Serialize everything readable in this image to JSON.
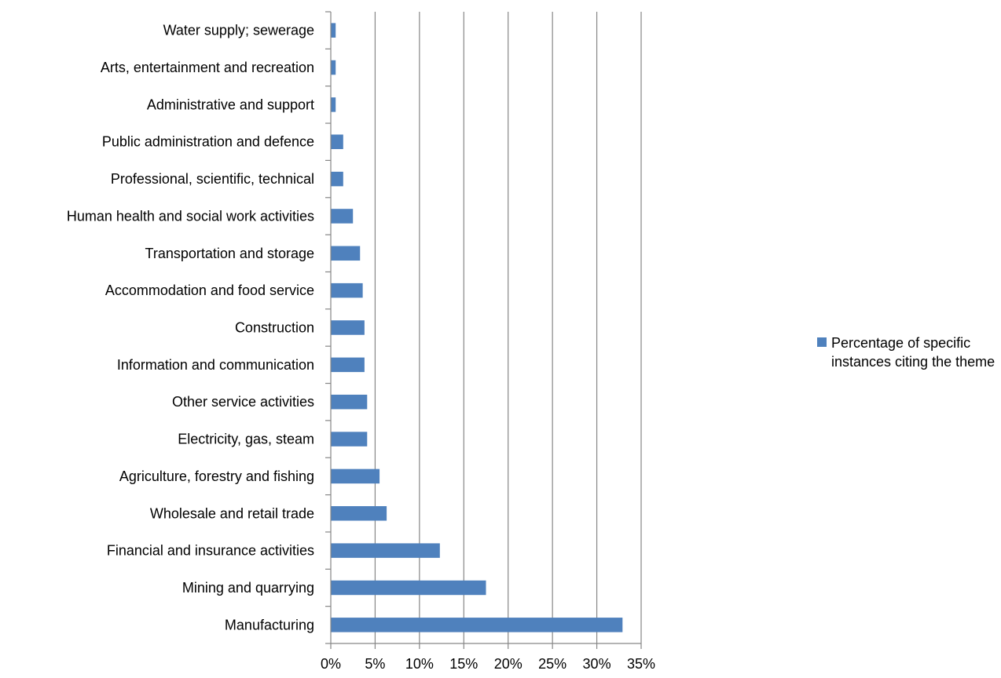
{
  "chart_data": {
    "type": "bar",
    "orientation": "horizontal",
    "categories": [
      "Manufacturing",
      "Mining and quarrying",
      "Financial and insurance activities",
      "Wholesale and retail trade",
      "Agriculture, forestry and fishing",
      "Electricity, gas, steam",
      "Other service activities",
      "Information and communication",
      "Construction",
      "Accommodation and food service",
      "Transportation and storage",
      "Human health and social work activities",
      "Professional, scientific, technical",
      "Public administration and defence",
      "Administrative and support",
      "Arts, entertainment and recreation",
      "Water supply; sewerage"
    ],
    "series": [
      {
        "name": "Percentage of specific instances citing the theme",
        "values": [
          32.9,
          17.5,
          12.3,
          6.3,
          5.5,
          4.1,
          4.1,
          3.8,
          3.8,
          3.6,
          3.3,
          2.5,
          1.4,
          1.4,
          0.55,
          0.55,
          0.55
        ]
      }
    ],
    "xlim": [
      0,
      35
    ],
    "x_ticks": [
      "0%",
      "5%",
      "10%",
      "15%",
      "20%",
      "25%",
      "30%",
      "35%"
    ],
    "grid": "vertical",
    "legend_position": "right",
    "bar_color": "#4f81bd",
    "grid_color": "#868686"
  },
  "legend": {
    "label": "Percentage of specific instances citing the theme"
  }
}
